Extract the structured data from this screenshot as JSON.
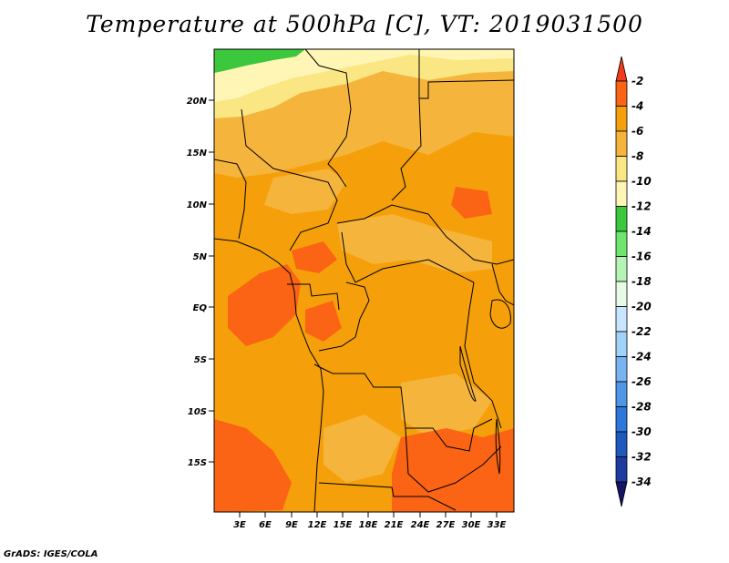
{
  "map": {
    "title": "Temperature at 500hPa [C], VT: 2019031500",
    "credit": "GrADS: IGES/COLA",
    "lat_labels": [
      "20N",
      "15N",
      "10N",
      "5N",
      "EQ",
      "5S",
      "10S",
      "15S"
    ],
    "lon_labels": [
      "3E",
      "6E",
      "9E",
      "12E",
      "15E",
      "18E",
      "21E",
      "24E",
      "27E",
      "30E",
      "33E"
    ],
    "colors": {
      "c_m2": "#f03c1e",
      "c_m4": "#fa6414",
      "c_m6": "#f5a00a",
      "c_m8": "#f5b43c",
      "c_m10": "#fae682",
      "c_m12": "#fff5b4",
      "c_m14": "#3cc83c",
      "border": "#000000"
    }
  },
  "legend": {
    "labels": [
      "-2",
      "-4",
      "-6",
      "-8",
      "-10",
      "-12",
      "-14",
      "-16",
      "-18",
      "-20",
      "-22",
      "-24",
      "-26",
      "-28",
      "-30",
      "-32",
      "-34"
    ],
    "colors": [
      "#f03c1e",
      "#fa6414",
      "#f5a00a",
      "#f5b43c",
      "#fae682",
      "#fff5b4",
      "#3cc83c",
      "#6ee66e",
      "#b4f5b4",
      "#e6fae6",
      "#c8e6ff",
      "#a0d2fa",
      "#78b4f0",
      "#5096e6",
      "#2c78dc",
      "#1e5abe",
      "#1e3ca0",
      "#141464",
      "#e1e1f5"
    ]
  }
}
